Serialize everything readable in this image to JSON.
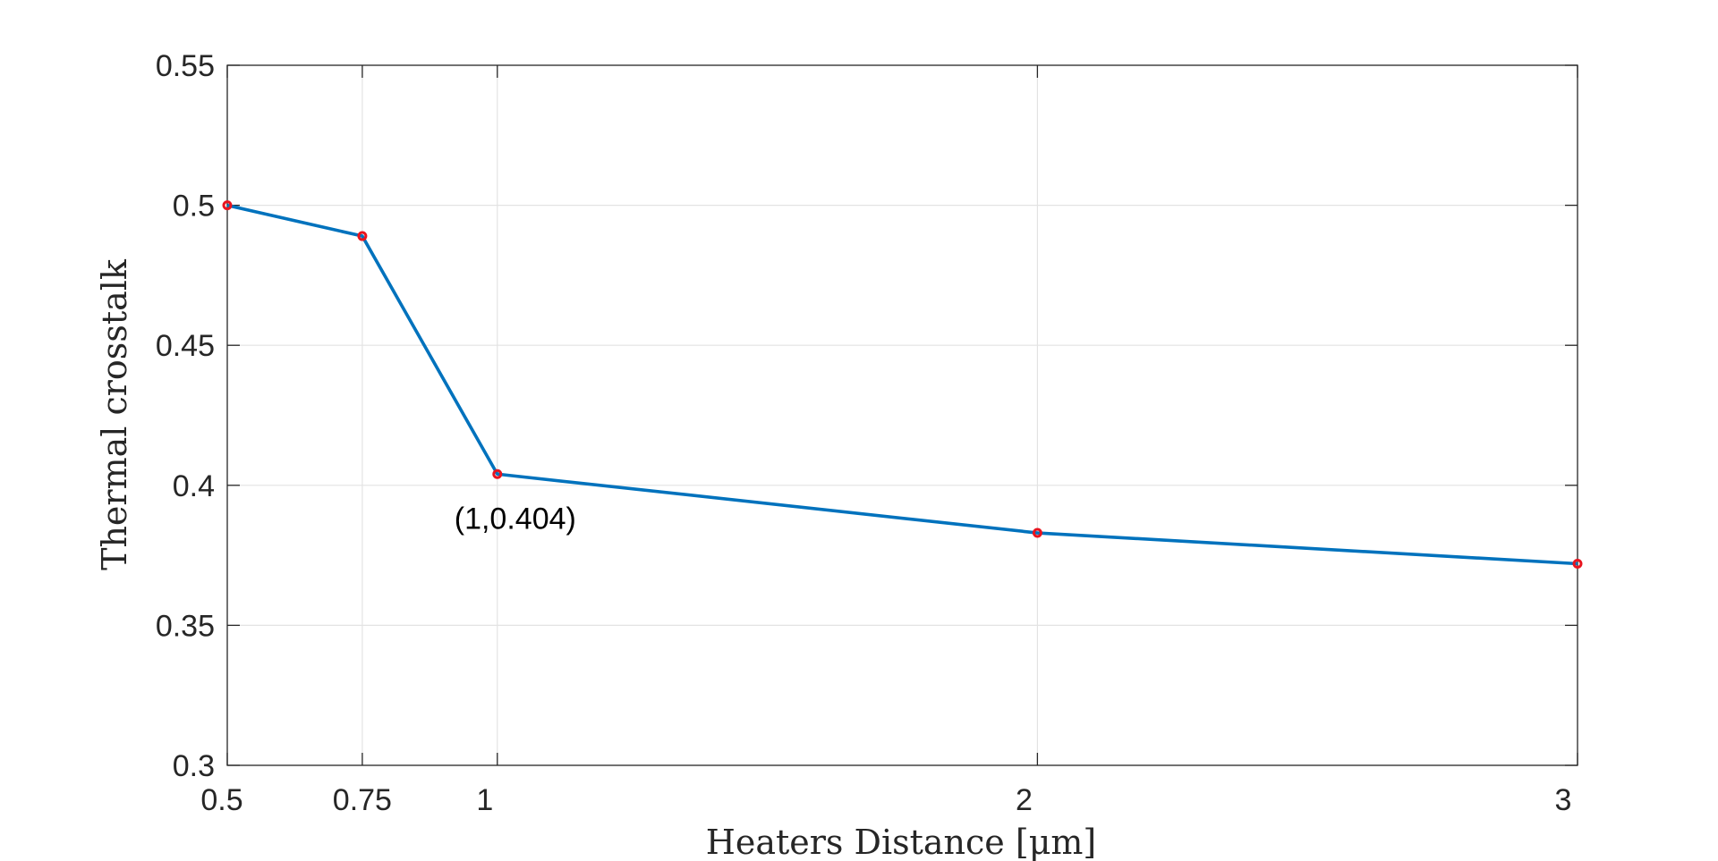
{
  "chart_data": {
    "type": "line",
    "xlabel": "Heaters Distance [μm]",
    "ylabel": "Thermal crosstalk",
    "xlim": [
      0.5,
      3
    ],
    "ylim": [
      0.3,
      0.55
    ],
    "x_scale": "linear",
    "grid": true,
    "x_ticks": [
      0.5,
      0.75,
      1,
      2,
      3
    ],
    "x_tick_labels": [
      "0.5",
      "0.75",
      "1",
      "2",
      "3"
    ],
    "y_ticks": [
      0.3,
      0.35,
      0.4,
      0.45,
      0.5,
      0.55
    ],
    "y_tick_labels": [
      "0.3",
      "0.35",
      "0.4",
      "0.45",
      "0.5",
      "0.55"
    ],
    "series": [
      {
        "x": [
          0.5,
          0.75,
          1,
          2,
          3
        ],
        "y": [
          0.5,
          0.489,
          0.404,
          0.383,
          0.372
        ],
        "color": "#0072BD",
        "marker_color": "#E8141F"
      }
    ],
    "annotations": [
      {
        "text": "(1,0.404)",
        "x": 1,
        "y": 0.404
      }
    ]
  }
}
